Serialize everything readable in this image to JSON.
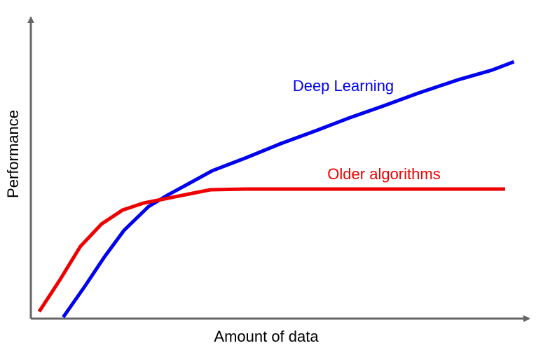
{
  "chart_data": {
    "type": "line",
    "x_label": "Amount of data",
    "y_label": "Performance",
    "xlim": [
      0,
      100
    ],
    "ylim": [
      0,
      100
    ],
    "series": [
      {
        "name": "Deep Learning",
        "color": "#0000ee",
        "x": [
          6.6,
          11,
          15,
          19,
          24,
          28,
          32,
          37,
          44,
          51,
          58,
          65,
          72,
          79,
          87,
          94,
          98.5
        ],
        "values": [
          0.5,
          11.5,
          22,
          31.5,
          40,
          44.2,
          48,
          52.8,
          57.5,
          62.5,
          67,
          71.7,
          76,
          80.5,
          85.2,
          88.7,
          91.7
        ]
      },
      {
        "name": "Older algorithms",
        "color": "#ee0000",
        "x": [
          1.7,
          5.9,
          10.1,
          14.4,
          18.7,
          23,
          28,
          32.3,
          36.6,
          43.7,
          58,
          72.3,
          86.6,
          96.7
        ],
        "values": [
          2.5,
          13.75,
          25.75,
          33.75,
          38.75,
          41.25,
          43,
          44.5,
          46,
          46.25,
          46.25,
          46.25,
          46.25,
          46.25
        ]
      }
    ]
  }
}
